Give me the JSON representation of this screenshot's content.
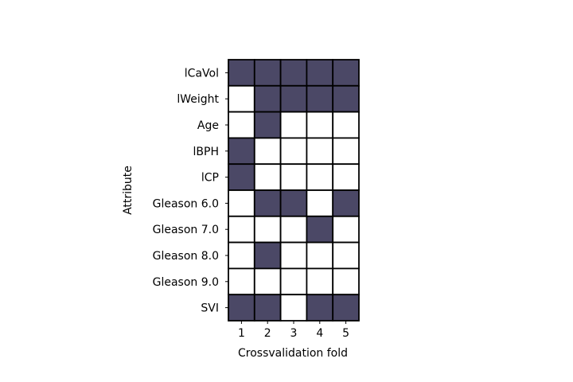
{
  "chart_data": {
    "type": "heatmap",
    "title": "",
    "xlabel": "Crossvalidation fold",
    "ylabel": "Attribute",
    "x_categories": [
      "1",
      "2",
      "3",
      "4",
      "5"
    ],
    "y_categories": [
      "lCaVol",
      "lWeight",
      "Age",
      "lBPH",
      "lCP",
      "Gleason 6.0",
      "Gleason 7.0",
      "Gleason 8.0",
      "Gleason 9.0",
      "SVI"
    ],
    "matrix": [
      [
        1,
        1,
        1,
        1,
        1
      ],
      [
        0,
        1,
        1,
        1,
        1
      ],
      [
        0,
        1,
        0,
        0,
        0
      ],
      [
        1,
        0,
        0,
        0,
        0
      ],
      [
        1,
        0,
        0,
        0,
        0
      ],
      [
        0,
        1,
        1,
        0,
        1
      ],
      [
        0,
        0,
        0,
        1,
        0
      ],
      [
        0,
        1,
        0,
        0,
        0
      ],
      [
        0,
        0,
        0,
        0,
        0
      ],
      [
        1,
        1,
        0,
        1,
        1
      ]
    ],
    "colors": {
      "selected": "#4b4866",
      "unselected": "#ffffff",
      "cell_border": "#000000"
    },
    "grid": true,
    "legend": false
  }
}
